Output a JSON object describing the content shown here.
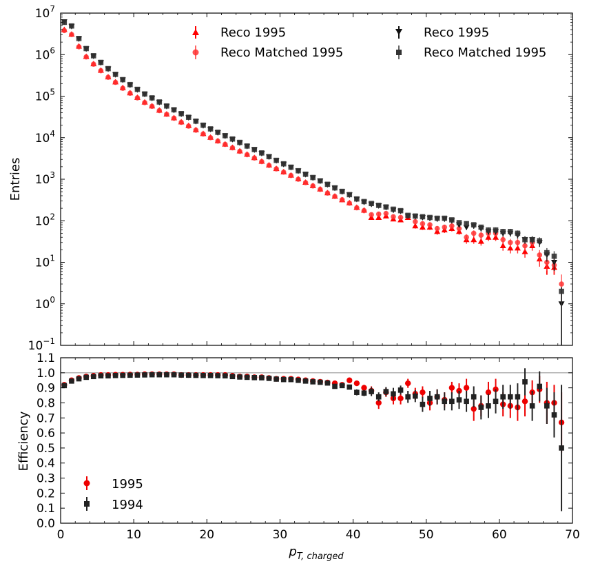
{
  "chart_data": [
    {
      "type": "scatter",
      "panel": "top",
      "title": "",
      "xlabel": "",
      "ylabel": "Entries",
      "yscale": "log",
      "xlim": [
        0,
        70
      ],
      "ylim": [
        0.1,
        10000000
      ],
      "ytick_labels": [
        {
          "base": "10",
          "exp": "−1",
          "v": 0.1
        },
        {
          "base": "10",
          "exp": "0",
          "v": 1
        },
        {
          "base": "10",
          "exp": "1",
          "v": 10
        },
        {
          "base": "10",
          "exp": "2",
          "v": 100
        },
        {
          "base": "10",
          "exp": "3",
          "v": 1000
        },
        {
          "base": "10",
          "exp": "4",
          "v": 10000
        },
        {
          "base": "10",
          "exp": "5",
          "v": 100000
        },
        {
          "base": "10",
          "exp": "6",
          "v": 1000000
        },
        {
          "base": "10",
          "exp": "7",
          "v": 10000000
        }
      ],
      "legend_position": "top",
      "x": [
        0.5,
        1.5,
        2.5,
        3.5,
        4.5,
        5.5,
        6.5,
        7.5,
        8.5,
        9.5,
        10.5,
        11.5,
        12.5,
        13.5,
        14.5,
        15.5,
        16.5,
        17.5,
        18.5,
        19.5,
        20.5,
        21.5,
        22.5,
        23.5,
        24.5,
        25.5,
        26.5,
        27.5,
        28.5,
        29.5,
        30.5,
        31.5,
        32.5,
        33.5,
        34.5,
        35.5,
        36.5,
        37.5,
        38.5,
        39.5,
        40.5,
        41.5,
        42.5,
        43.5,
        44.5,
        45.5,
        46.5,
        47.5,
        48.5,
        49.5,
        50.5,
        51.5,
        52.5,
        53.5,
        54.5,
        55.5,
        56.5,
        57.5,
        58.5,
        59.5,
        60.5,
        61.5,
        62.5,
        63.5,
        64.5,
        65.5,
        66.5,
        67.5,
        68.5
      ],
      "series": [
        {
          "name": "Reco 1995",
          "color": "#ff0000",
          "marker": "triangle-up",
          "values": [
            4000000,
            3100000,
            1600000,
            900000,
            600000,
            420000,
            290000,
            220000,
            160000,
            120000,
            93000,
            72000,
            58000,
            46000,
            37000,
            30000,
            24000,
            19500,
            15500,
            12500,
            10200,
            8400,
            7000,
            5800,
            4800,
            4000,
            3300,
            2700,
            2200,
            1800,
            1500,
            1250,
            1020,
            840,
            700,
            580,
            470,
            390,
            320,
            270,
            210,
            180,
            120,
            120,
            130,
            110,
            105,
            120,
            75,
            70,
            70,
            55,
            60,
            65,
            55,
            35,
            35,
            32,
            40,
            40,
            25,
            22,
            22,
            18,
            25,
            12,
            8,
            7.5,
            null
          ],
          "errors_low_to": {
            "67.5": 5,
            "66.5": 5
          }
        },
        {
          "name": "Reco Matched 1995",
          "color": "#ff3333",
          "marker": "circle",
          "values": [
            3800000,
            3050000,
            1550000,
            880000,
            590000,
            410000,
            285000,
            215000,
            155000,
            118000,
            91000,
            70000,
            57000,
            45000,
            36500,
            29500,
            23500,
            19000,
            15200,
            12300,
            10000,
            8300,
            6900,
            5700,
            4700,
            3900,
            3250,
            2650,
            2150,
            1780,
            1480,
            1230,
            1000,
            830,
            690,
            570,
            465,
            385,
            320,
            265,
            205,
            175,
            140,
            145,
            150,
            125,
            120,
            130,
            95,
            85,
            80,
            65,
            70,
            75,
            65,
            40,
            50,
            45,
            50,
            50,
            35,
            30,
            30,
            25,
            30,
            15,
            10,
            8.5,
            3
          ]
        },
        {
          "name": "Reco 1995",
          "color": "#111111",
          "marker": "triangle-down",
          "values": [
            6200000,
            4800000,
            2400000,
            1380000,
            920000,
            640000,
            450000,
            330000,
            245000,
            185000,
            143000,
            111000,
            89000,
            71000,
            57000,
            46000,
            37000,
            30500,
            24500,
            19500,
            16000,
            13200,
            11000,
            9100,
            7500,
            6200,
            5100,
            4200,
            3450,
            2800,
            2300,
            1920,
            1580,
            1300,
            1080,
            900,
            740,
            610,
            500,
            420,
            330,
            280,
            250,
            230,
            210,
            180,
            170,
            130,
            125,
            120,
            115,
            110,
            110,
            100,
            80,
            70,
            75,
            65,
            55,
            55,
            50,
            50,
            45,
            35,
            35,
            30,
            15,
            10,
            1
          ]
        },
        {
          "name": "Reco Matched 1995",
          "color": "#333333",
          "marker": "square",
          "values": [
            6000000,
            4900000,
            2450000,
            1400000,
            940000,
            650000,
            460000,
            335000,
            250000,
            190000,
            146000,
            113000,
            91000,
            72500,
            58000,
            47000,
            38000,
            31000,
            25000,
            20000,
            16300,
            13500,
            11200,
            9300,
            7700,
            6300,
            5200,
            4300,
            3500,
            2850,
            2350,
            1950,
            1600,
            1320,
            1100,
            915,
            755,
            620,
            510,
            425,
            335,
            290,
            260,
            235,
            215,
            190,
            175,
            135,
            130,
            125,
            120,
            115,
            115,
            105,
            90,
            85,
            80,
            70,
            60,
            60,
            55,
            55,
            50,
            35,
            35,
            33,
            17,
            14,
            2
          ],
          "errors_low_to": {
            "68.5": 0.1
          }
        }
      ]
    },
    {
      "type": "scatter",
      "panel": "bottom",
      "title": "",
      "xlabel": "p_{T,charged}",
      "xlabel_main": "p",
      "xlabel_sub": "T, charged",
      "ylabel": "Efficiency",
      "xlim": [
        0,
        70
      ],
      "ylim": [
        0.0,
        1.1
      ],
      "xticks": [
        0,
        10,
        20,
        30,
        40,
        50,
        60,
        70
      ],
      "xtick_labels": [
        "0",
        "10",
        "20",
        "30",
        "40",
        "50",
        "60",
        "70"
      ],
      "yticks": [
        0.0,
        0.1,
        0.2,
        0.3,
        0.4,
        0.5,
        0.6,
        0.7,
        0.8,
        0.9,
        1.0,
        1.1
      ],
      "ytick_labels": [
        "0.0",
        "0.1",
        "0.2",
        "0.3",
        "0.4",
        "0.5",
        "0.6",
        "0.7",
        "0.8",
        "0.9",
        "1.0",
        "1.1"
      ],
      "reference_line": 1.0,
      "legend_position": "bottom-left",
      "x": [
        0.5,
        1.5,
        2.5,
        3.5,
        4.5,
        5.5,
        6.5,
        7.5,
        8.5,
        9.5,
        10.5,
        11.5,
        12.5,
        13.5,
        14.5,
        15.5,
        16.5,
        17.5,
        18.5,
        19.5,
        20.5,
        21.5,
        22.5,
        23.5,
        24.5,
        25.5,
        26.5,
        27.5,
        28.5,
        29.5,
        30.5,
        31.5,
        32.5,
        33.5,
        34.5,
        35.5,
        36.5,
        37.5,
        38.5,
        39.5,
        40.5,
        41.5,
        42.5,
        43.5,
        44.5,
        45.5,
        46.5,
        47.5,
        48.5,
        49.5,
        50.5,
        51.5,
        52.5,
        53.5,
        54.5,
        55.5,
        56.5,
        57.5,
        58.5,
        59.5,
        60.5,
        61.5,
        62.5,
        63.5,
        64.5,
        65.5,
        66.5,
        67.5,
        68.5
      ],
      "series": [
        {
          "name": "1995",
          "color": "#ee0000",
          "marker": "circle",
          "values": [
            0.92,
            0.95,
            0.965,
            0.975,
            0.98,
            0.985,
            0.985,
            0.987,
            0.987,
            0.988,
            0.988,
            0.99,
            0.99,
            0.99,
            0.99,
            0.99,
            0.985,
            0.985,
            0.985,
            0.985,
            0.985,
            0.985,
            0.985,
            0.98,
            0.975,
            0.975,
            0.97,
            0.97,
            0.965,
            0.96,
            0.96,
            0.96,
            0.955,
            0.95,
            0.945,
            0.94,
            0.935,
            0.93,
            0.92,
            0.95,
            0.93,
            0.9,
            0.88,
            0.8,
            0.87,
            0.83,
            0.83,
            0.93,
            0.86,
            0.87,
            0.8,
            0.84,
            0.82,
            0.9,
            0.88,
            0.9,
            0.76,
            0.78,
            0.87,
            0.89,
            0.79,
            0.78,
            0.77,
            0.81,
            0.87,
            0.89,
            0.8,
            0.8,
            0.67
          ],
          "errors": [
            0,
            0,
            0,
            0,
            0,
            0,
            0,
            0,
            0,
            0,
            0,
            0,
            0,
            0,
            0,
            0,
            0,
            0,
            0,
            0,
            0,
            0,
            0,
            0,
            0,
            0,
            0,
            0,
            0,
            0,
            0,
            0,
            0,
            0,
            0,
            0,
            0,
            0,
            0,
            0.01,
            0.01,
            0.02,
            0.03,
            0.04,
            0.03,
            0.04,
            0.04,
            0.03,
            0.04,
            0.04,
            0.05,
            0.05,
            0.05,
            0.04,
            0.05,
            0.06,
            0.08,
            0.07,
            0.07,
            0.07,
            0.08,
            0.08,
            0.09,
            0.1,
            0.08,
            0.09,
            0.14,
            0.12,
            0.2
          ]
        },
        {
          "name": "1994",
          "color": "#222222",
          "marker": "square",
          "values": [
            0.915,
            0.945,
            0.96,
            0.97,
            0.975,
            0.98,
            0.98,
            0.982,
            0.983,
            0.984,
            0.985,
            0.986,
            0.987,
            0.987,
            0.987,
            0.987,
            0.985,
            0.984,
            0.983,
            0.982,
            0.982,
            0.981,
            0.98,
            0.975,
            0.972,
            0.97,
            0.968,
            0.967,
            0.963,
            0.958,
            0.955,
            0.955,
            0.95,
            0.945,
            0.94,
            0.937,
            0.932,
            0.91,
            0.915,
            0.905,
            0.87,
            0.865,
            0.875,
            0.84,
            0.875,
            0.86,
            0.885,
            0.84,
            0.845,
            0.79,
            0.83,
            0.84,
            0.81,
            0.81,
            0.82,
            0.81,
            0.84,
            0.77,
            0.78,
            0.81,
            0.84,
            0.84,
            0.84,
            0.94,
            0.78,
            0.91,
            0.78,
            0.72,
            0.5
          ],
          "errors": [
            0,
            0,
            0,
            0,
            0,
            0,
            0,
            0,
            0,
            0,
            0,
            0,
            0,
            0,
            0,
            0,
            0,
            0,
            0,
            0,
            0,
            0,
            0,
            0,
            0,
            0,
            0,
            0,
            0,
            0,
            0,
            0,
            0,
            0,
            0,
            0,
            0,
            0,
            0.01,
            0.01,
            0.02,
            0.02,
            0.03,
            0.03,
            0.03,
            0.04,
            0.03,
            0.04,
            0.04,
            0.05,
            0.05,
            0.05,
            0.06,
            0.06,
            0.06,
            0.07,
            0.07,
            0.08,
            0.08,
            0.08,
            0.08,
            0.08,
            0.09,
            0.09,
            0.1,
            0.1,
            0.12,
            0.15,
            0.42
          ]
        }
      ]
    }
  ]
}
